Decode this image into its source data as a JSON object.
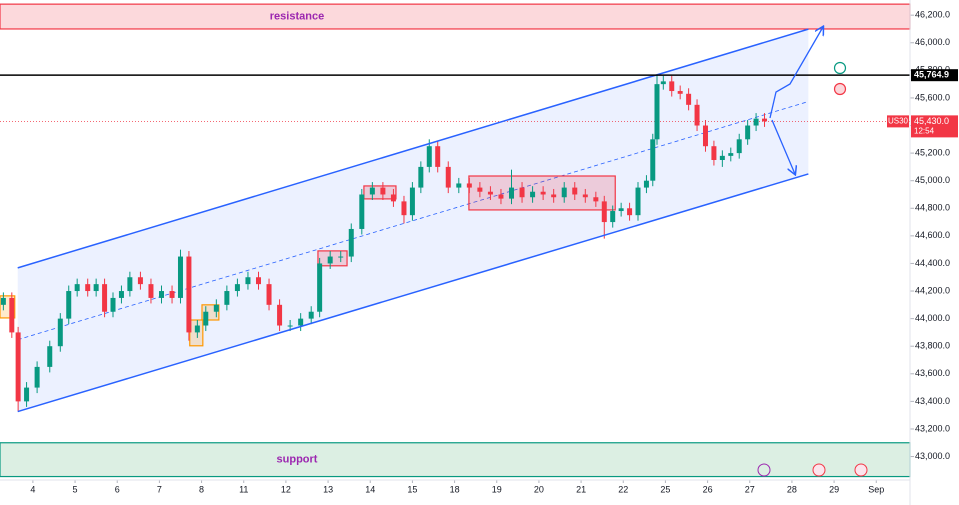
{
  "chart_data": {
    "type": "candlestick",
    "x": [
      -0.7,
      -0.5,
      -0.35,
      -0.15,
      0.1,
      0.4,
      0.65,
      0.85,
      1.05,
      1.3,
      1.5,
      1.7,
      1.9,
      2.1,
      2.3,
      2.55,
      2.8,
      3.05,
      3.3,
      3.5,
      3.7,
      3.9,
      4.1,
      4.35,
      4.6,
      4.85,
      5.1,
      5.35,
      5.6,
      5.85,
      6.1,
      6.35,
      6.6,
      6.8,
      7.05,
      7.3,
      7.55,
      7.8,
      8.05,
      8.3,
      8.55,
      8.8,
      9.0,
      9.2,
      9.4,
      9.6,
      9.85,
      10.1,
      10.35,
      10.6,
      10.85,
      11.1,
      11.35,
      11.6,
      11.85,
      12.1,
      12.35,
      12.6,
      12.85,
      13.1,
      13.35,
      13.55,
      13.75,
      13.95,
      14.15,
      14.35,
      14.55,
      14.7,
      14.8,
      14.95,
      15.15,
      15.35,
      15.55,
      15.75,
      15.95,
      16.15,
      16.35,
      16.55,
      16.75,
      16.95,
      17.15,
      17.35
    ],
    "open": [
      44100,
      44150,
      43900,
      43400,
      43500,
      43650,
      43800,
      44000,
      44200,
      44250,
      44200,
      44250,
      44050,
      44150,
      44200,
      44300,
      44250,
      44150,
      44200,
      44150,
      44450,
      43900,
      43950,
      44050,
      44100,
      44200,
      44250,
      44300,
      44250,
      44100,
      43950,
      43950,
      44000,
      44050,
      44400,
      44450,
      44450,
      44650,
      44900,
      44950,
      44900,
      44850,
      44750,
      44950,
      45100,
      45250,
      45100,
      44950,
      44980,
      44950,
      44920,
      44900,
      44870,
      44950,
      44880,
      44920,
      44900,
      44880,
      44950,
      44900,
      44880,
      44850,
      44700,
      44780,
      44800,
      44750,
      44950,
      45000,
      45300,
      45700,
      45720,
      45650,
      45630,
      45550,
      45400,
      45250,
      45150,
      45180,
      45200,
      45300,
      45400,
      45450
    ],
    "high": [
      44190,
      44190,
      43940,
      43540,
      43690,
      43840,
      44040,
      44240,
      44290,
      44290,
      44290,
      44290,
      44190,
      44240,
      44340,
      44340,
      44290,
      44240,
      44240,
      44500,
      44490,
      43990,
      44090,
      44140,
      44240,
      44290,
      44340,
      44340,
      44290,
      44140,
      43990,
      44040,
      44090,
      44440,
      44490,
      44490,
      44690,
      44940,
      44990,
      44990,
      44940,
      44890,
      44990,
      45140,
      45300,
      45290,
      45140,
      45020,
      45020,
      44990,
      44960,
      44940,
      45080,
      44990,
      44960,
      44960,
      44940,
      44990,
      44990,
      44940,
      44920,
      44890,
      44820,
      44840,
      44840,
      44990,
      45040,
      45340,
      45770,
      45760,
      45760,
      45690,
      45670,
      45590,
      45440,
      45290,
      45220,
      45240,
      45340,
      45440,
      45490,
      45490
    ],
    "low": [
      44060,
      43860,
      43330,
      43360,
      43460,
      43610,
      43760,
      43960,
      44160,
      44160,
      44160,
      44010,
      44010,
      44110,
      44160,
      44210,
      44110,
      44110,
      44110,
      44110,
      43840,
      43860,
      43910,
      44010,
      44060,
      44160,
      44210,
      44210,
      44060,
      43910,
      43910,
      43910,
      43960,
      44010,
      44360,
      44410,
      44410,
      44610,
      44860,
      44860,
      44810,
      44690,
      44710,
      44910,
      45060,
      45060,
      44910,
      44910,
      44910,
      44880,
      44860,
      44830,
      44830,
      44840,
      44840,
      44860,
      44840,
      44840,
      44860,
      44840,
      44810,
      44580,
      44660,
      44740,
      44710,
      44710,
      44910,
      44960,
      45260,
      45660,
      45610,
      45590,
      45510,
      45360,
      45210,
      45110,
      45100,
      45140,
      45160,
      45260,
      45360,
      45390
    ],
    "close": [
      44150,
      43900,
      43400,
      43500,
      43650,
      43800,
      44000,
      44200,
      44250,
      44200,
      44250,
      44050,
      44150,
      44200,
      44300,
      44250,
      44150,
      44200,
      44150,
      44450,
      43900,
      43950,
      44050,
      44100,
      44200,
      44250,
      44300,
      44250,
      44100,
      43950,
      43950,
      44000,
      44050,
      44400,
      44450,
      44450,
      44650,
      44900,
      44950,
      44900,
      44850,
      44750,
      44950,
      45100,
      45250,
      45100,
      44950,
      44980,
      44950,
      44920,
      44900,
      44870,
      44950,
      44880,
      44920,
      44900,
      44880,
      44950,
      44900,
      44880,
      44850,
      44700,
      44780,
      44800,
      44750,
      44950,
      45000,
      45300,
      45700,
      45720,
      45650,
      45630,
      45550,
      45400,
      45250,
      45150,
      45180,
      45200,
      45300,
      45400,
      45450,
      45430
    ],
    "up_color": "#089981",
    "down_color": "#f23645",
    "xlim": [
      -0.78,
      20.8
    ],
    "ylim": [
      42830,
      46310
    ],
    "xticks": [
      {
        "value": 0,
        "label": "4"
      },
      {
        "value": 1,
        "label": "5"
      },
      {
        "value": 2,
        "label": "6"
      },
      {
        "value": 3,
        "label": "7"
      },
      {
        "value": 4,
        "label": "8"
      },
      {
        "value": 5,
        "label": "11"
      },
      {
        "value": 6,
        "label": "12"
      },
      {
        "value": 7,
        "label": "13"
      },
      {
        "value": 8,
        "label": "14"
      },
      {
        "value": 9,
        "label": "15"
      },
      {
        "value": 10,
        "label": "18"
      },
      {
        "value": 11,
        "label": "19"
      },
      {
        "value": 12,
        "label": "20"
      },
      {
        "value": 13,
        "label": "21"
      },
      {
        "value": 14,
        "label": "22"
      },
      {
        "value": 15,
        "label": "25"
      },
      {
        "value": 16,
        "label": "26"
      },
      {
        "value": 17,
        "label": "27"
      },
      {
        "value": 18,
        "label": "28"
      },
      {
        "value": 19,
        "label": "29"
      },
      {
        "value": 20,
        "label": "Sep"
      }
    ],
    "yticks": [
      {
        "value": 43000,
        "label": "43,000.0"
      },
      {
        "value": 43200,
        "label": "43,200.0"
      },
      {
        "value": 43400,
        "label": "43,400.0"
      },
      {
        "value": 43600,
        "label": "43,600.0"
      },
      {
        "value": 43800,
        "label": "43,800.0"
      },
      {
        "value": 44000,
        "label": "44,000.0"
      },
      {
        "value": 44200,
        "label": "44,200.0"
      },
      {
        "value": 44400,
        "label": "44,400.0"
      },
      {
        "value": 44600,
        "label": "44,600.0"
      },
      {
        "value": 44800,
        "label": "44,800.0"
      },
      {
        "value": 45000,
        "label": "45,000.0"
      },
      {
        "value": 45200,
        "label": "45,200.0"
      },
      {
        "value": 45400,
        "label": "45,400.0"
      },
      {
        "value": 45600,
        "label": "45,600.0"
      },
      {
        "value": 45800,
        "label": "45,800.0"
      },
      {
        "value": 46000,
        "label": "46,000.0"
      },
      {
        "value": 46200,
        "label": "46,200.0"
      }
    ],
    "resistance_zone": {
      "label": "resistance",
      "range": [
        46100,
        46280
      ],
      "color": "#f23645"
    },
    "support_zone": {
      "label": "support",
      "range": [
        42855,
        43100
      ],
      "color": "#089981"
    },
    "marked_level": {
      "value": 45764.9,
      "label": "45,764.9"
    },
    "last_price": {
      "symbol": "US30",
      "value": 45430,
      "label": "45,430.0",
      "countdown": "12:54"
    },
    "channel": {
      "x": [
        -0.36,
        18.39
      ],
      "upper": [
        44368,
        46099
      ],
      "lower": [
        43326,
        45049
      ]
    },
    "boxes": [
      {
        "x": [
          -0.78,
          -0.43
        ],
        "y": [
          44005,
          44165
        ],
        "color": "#ff9800"
      },
      {
        "x": [
          3.72,
          4.03
        ],
        "y": [
          43803,
          43990
        ],
        "color": "#ff9800"
      },
      {
        "x": [
          4.01,
          4.41
        ],
        "y": [
          43990,
          44100
        ],
        "color": "#ff9800"
      },
      {
        "x": [
          6.76,
          7.45
        ],
        "y": [
          44383,
          44491
        ],
        "color": "#f23645"
      },
      {
        "x": [
          7.85,
          8.61
        ],
        "y": [
          44868,
          44962
        ],
        "color": "#f23645"
      },
      {
        "x": [
          10.34,
          13.81
        ],
        "y": [
          44788,
          45034
        ],
        "color": "#f23645"
      }
    ]
  }
}
